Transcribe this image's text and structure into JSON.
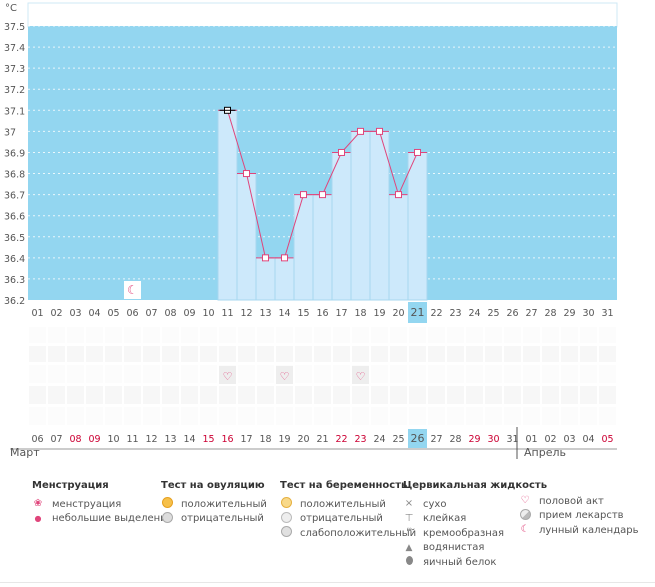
{
  "chart_data": {
    "type": "bar",
    "title": "",
    "unit_label": "°C",
    "y_ticks": [
      "36.2",
      "36.3",
      "36.4",
      "36.5",
      "36.6",
      "36.7",
      "36.8",
      "36.9",
      "37",
      "37.1",
      "37.2",
      "37.3",
      "37.4",
      "37.5"
    ],
    "ylim": [
      36.2,
      37.6
    ],
    "cycle_days": [
      "01",
      "02",
      "03",
      "04",
      "05",
      "06",
      "07",
      "08",
      "09",
      "10",
      "11",
      "12",
      "13",
      "14",
      "15",
      "16",
      "17",
      "18",
      "19",
      "20",
      "21",
      "22",
      "23",
      "24",
      "25",
      "26",
      "27",
      "28",
      "29",
      "30",
      "31"
    ],
    "highlight_cycle_day_index": 20,
    "dates": [
      "06",
      "07",
      "08",
      "09",
      "10",
      "11",
      "12",
      "13",
      "14",
      "15",
      "16",
      "17",
      "18",
      "19",
      "20",
      "21",
      "22",
      "23",
      "24",
      "25",
      "26",
      "27",
      "28",
      "29",
      "30",
      "31",
      "01",
      "02",
      "03",
      "04",
      "05"
    ],
    "date_colors": [
      "#555",
      "#555",
      "#cc0033",
      "#cc0033",
      "#555",
      "#555",
      "#555",
      "#555",
      "#555",
      "#cc0033",
      "#cc0033",
      "#555",
      "#555",
      "#555",
      "#555",
      "#555",
      "#cc0033",
      "#cc0033",
      "#555",
      "#555",
      "#555",
      "#555",
      "#555",
      "#cc0033",
      "#cc0033",
      "#555",
      "#555",
      "#555",
      "#555",
      "#555",
      "#cc0033"
    ],
    "highlight_date_index": 20,
    "months": [
      {
        "label": "Март",
        "start_index": 0
      },
      {
        "label": "Апрель",
        "start_index": 26
      }
    ],
    "temperatures": [
      null,
      null,
      null,
      null,
      null,
      null,
      null,
      null,
      null,
      null,
      37.1,
      36.8,
      36.4,
      36.4,
      36.7,
      36.7,
      36.9,
      37.0,
      37.0,
      36.7,
      36.9,
      null,
      null,
      null,
      null,
      null,
      null,
      null,
      null,
      null,
      null
    ],
    "moon_marker_day_index": 5,
    "intercourse_day_indices": [
      10,
      13,
      17
    ],
    "colors": {
      "background": "#93d6f0",
      "bar_fill": "#cde9fb",
      "bar_stroke": "#a7d7ef",
      "line": "#e0457b",
      "marker_fill": "#ffffff",
      "marker_stroke": "#e0457b",
      "first_marker_stroke": "#000000",
      "highlight_cell": "#93d6f0",
      "grid_row_alt": "#fafafa"
    }
  },
  "legend": {
    "menstruation": {
      "title": "Менструация",
      "items": [
        {
          "label": "менструация",
          "icon": "menstruation-drops-icon"
        },
        {
          "label": "небольшие выделения",
          "icon": "spotting-drop-icon"
        }
      ]
    },
    "ovulation_test": {
      "title": "Тест на овуляцию",
      "items": [
        {
          "label": "положительный",
          "icon": "ovulation-positive-icon"
        },
        {
          "label": "отрицательный",
          "icon": "ovulation-negative-icon"
        }
      ]
    },
    "pregnancy_test": {
      "title": "Тест на беременность",
      "items": [
        {
          "label": "положительный",
          "icon": "pregnancy-positive-icon"
        },
        {
          "label": "отрицательный",
          "icon": "pregnancy-negative-icon"
        },
        {
          "label": "слабоположительный",
          "icon": "pregnancy-weak-icon"
        }
      ]
    },
    "cervical": {
      "title": "Цервикальная жидкость",
      "items": [
        {
          "label": "сухо",
          "icon": "dry-x-icon"
        },
        {
          "label": "клейкая",
          "icon": "sticky-icon"
        },
        {
          "label": "кремообразная",
          "icon": "creamy-icon"
        },
        {
          "label": "водянистая",
          "icon": "watery-drop-icon"
        },
        {
          "label": "яичный белок",
          "icon": "egg-white-icon"
        }
      ]
    },
    "other": {
      "items": [
        {
          "label": "половой акт",
          "icon": "heart-icon"
        },
        {
          "label": "прием лекарств",
          "icon": "pill-icon"
        },
        {
          "label": "лунный календарь",
          "icon": "moon-icon"
        }
      ]
    }
  }
}
